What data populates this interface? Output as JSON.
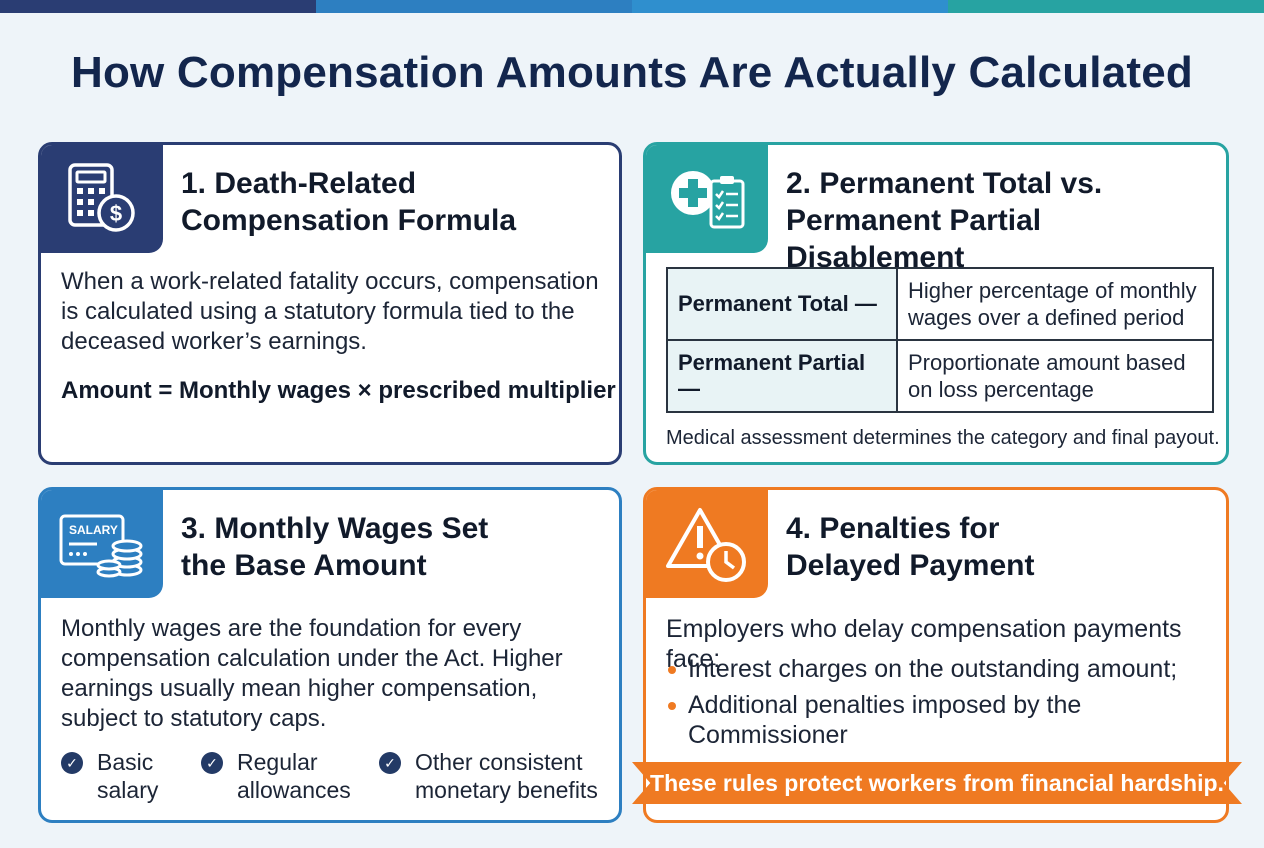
{
  "colors": {
    "navy": "#2a3d73",
    "teal": "#27a3a2",
    "blue": "#2d7fc1",
    "orange": "#ef7a22",
    "title": "#13264d"
  },
  "title": "How Compensation Amounts Are Actually Calculated",
  "card1": {
    "icon": "calculator-dollar-icon",
    "heading_line1": "1. Death-Related",
    "heading_line2": "Compensation Formula",
    "body": "When a work-related fatality occurs, compensation is calculated using a statutory formula tied to the deceased worker’s earnings.",
    "formula": "Amount = Monthly wages × prescribed multiplier"
  },
  "card2": {
    "icon": "medical-clipboard-icon",
    "heading_line1": "2. Permanent Total vs.",
    "heading_line2": "Permanent Partial Disablement",
    "rows": [
      {
        "label": "Permanent Total —",
        "desc": "Higher percentage of monthly wages over a defined period"
      },
      {
        "label": "Permanent Partial —",
        "desc": "Proportionate amount based on loss percentage"
      }
    ],
    "note": "Medical assessment determines the category and final payout."
  },
  "card3": {
    "icon": "salary-coins-icon",
    "icon_label": "SALARY",
    "heading_line1": "3. Monthly Wages Set",
    "heading_line2": "the Base Amount",
    "body": "Monthly wages are the foundation for every compensation calculation under the Act. Higher earnings usually mean higher compensation, subject to statutory caps.",
    "checks": [
      {
        "line1": "Basic",
        "line2": "salary"
      },
      {
        "line1": "Regular",
        "line2": "allowances"
      },
      {
        "line1": "Other consistent",
        "line2": "monetary benefits"
      }
    ]
  },
  "card4": {
    "icon": "warning-clock-icon",
    "heading_line1": "4. Penalties for",
    "heading_line2": "Delayed Payment",
    "intro": "Employers who delay compensation payments face:",
    "bullets": [
      "Interest charges on the outstanding amount;",
      "Additional penalties imposed by the Commissioner"
    ],
    "ribbon": "These rules protect workers from financial hardship."
  }
}
